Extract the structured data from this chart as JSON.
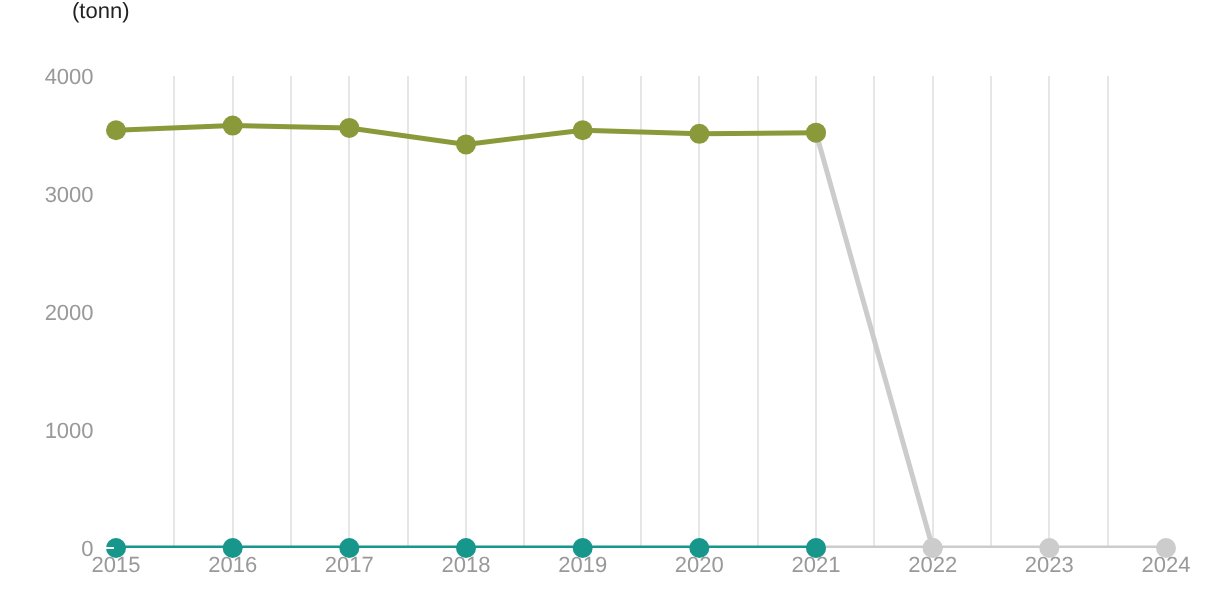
{
  "chart_data": {
    "type": "line",
    "ylabel": "(tonn)",
    "xlim": [
      2015,
      2024
    ],
    "xticks": [
      2015,
      {
        "value": 2015.5,
        "label": null
      },
      2016,
      {
        "value": 2016.5,
        "label": null
      },
      2017,
      {
        "value": 2017.5,
        "label": null
      },
      2018,
      {
        "value": 2018.5,
        "label": null
      },
      2019,
      {
        "value": 2019.5,
        "label": null
      },
      2020,
      {
        "value": 2020.5,
        "label": null
      },
      2021,
      {
        "value": 2021.5,
        "label": null
      },
      2022,
      {
        "value": 2022.5,
        "label": null
      },
      2023,
      {
        "value": 2023.5,
        "label": null
      },
      2024
    ],
    "ylim": [
      0,
      4000
    ],
    "yticks": [
      0,
      1000,
      2000,
      3000,
      4000
    ],
    "grid": "x",
    "marker": "circle",
    "line_style": "solid",
    "series": [
      {
        "color": "#cccccc",
        "x": [
          2021,
          2022,
          2023,
          2024
        ],
        "values": [
          3520,
          0,
          0,
          0
        ]
      },
      {
        "color": "#cccccc",
        "x": [
          2021,
          2022
        ],
        "values": [
          0,
          0
        ]
      },
      {
        "color": "#8a9a3b",
        "x": [
          2015,
          2016,
          2017,
          2018,
          2019,
          2020,
          2021
        ],
        "values": [
          3540,
          3580,
          3560,
          3420,
          3540,
          3510,
          3520
        ]
      },
      {
        "color": "#17968c",
        "x": [
          2015,
          2016,
          2017,
          2018,
          2019,
          2020,
          2021
        ],
        "values": [
          0,
          0,
          0,
          0,
          0,
          0,
          0
        ]
      }
    ]
  }
}
